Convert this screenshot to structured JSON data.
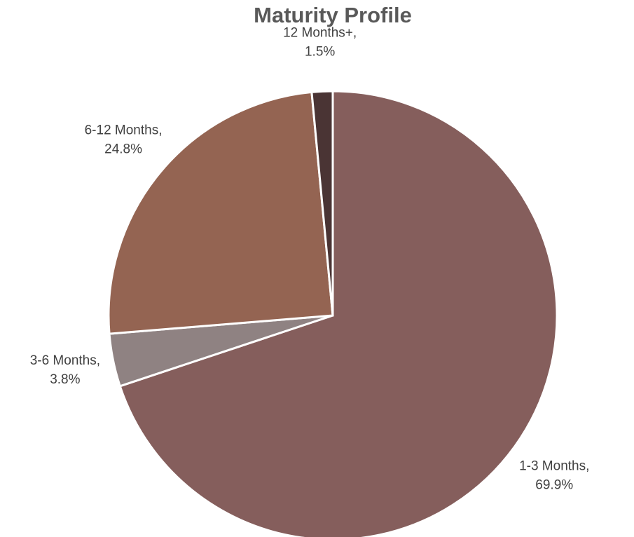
{
  "chart_data": {
    "type": "pie",
    "title": "Maturity Profile",
    "categories": [
      "1-3 Months,",
      "3-6 Months,",
      "6-12 Months,",
      "12 Months+,"
    ],
    "values": [
      69.9,
      3.8,
      24.8,
      1.5
    ],
    "value_labels": [
      "69.9%",
      "3.8%",
      "24.8%",
      "1.5%"
    ],
    "colors": [
      "#855e5c",
      "#8f8282",
      "#946452",
      "#4a3434"
    ]
  }
}
